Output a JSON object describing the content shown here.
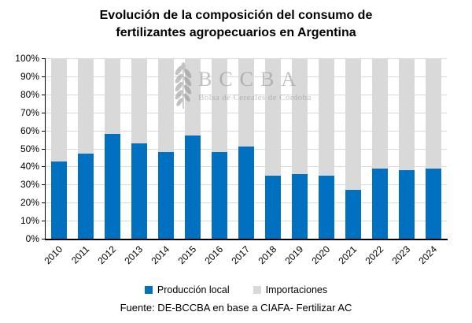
{
  "title": {
    "line1": "Evolución de la composición del consumo de",
    "line2": "fertilizantes agropecuarios en Argentina"
  },
  "watermark": {
    "acronym": "BCCBA",
    "name": "Bolsa de Cereales de Córdoba",
    "color": "#8c8c8c"
  },
  "footer": "Fuente: DE-BCCBA en base a CIAFA- Fertilizar AC",
  "legend": {
    "items": [
      {
        "label": "Producción local",
        "color": "#0070C0"
      },
      {
        "label": "Importaciones",
        "color": "#D9D9D9"
      }
    ]
  },
  "chart_data": {
    "type": "bar",
    "stacked": true,
    "normalized_100pct": true,
    "title": "Evolución de la composición del consumo de fertilizantes agropecuarios en Argentina",
    "xlabel": "",
    "ylabel": "",
    "ylim": [
      0,
      100
    ],
    "grid": true,
    "legend_position": "bottom",
    "categories": [
      "2010",
      "2011",
      "2012",
      "2013",
      "2014",
      "2015",
      "2016",
      "2017",
      "2018",
      "2019",
      "2020",
      "2021",
      "2022",
      "2023",
      "2024"
    ],
    "y_ticks": [
      "0%",
      "10%",
      "20%",
      "30%",
      "40%",
      "50%",
      "60%",
      "70%",
      "80%",
      "90%",
      "100%"
    ],
    "series": [
      {
        "name": "Producción local",
        "color": "#0070C0",
        "values": [
          43,
          47,
          58,
          53,
          48,
          57,
          48,
          51,
          35,
          36,
          35,
          27,
          39,
          38,
          39
        ]
      },
      {
        "name": "Importaciones",
        "color": "#D9D9D9",
        "values": [
          57,
          53,
          42,
          47,
          52,
          43,
          52,
          49,
          65,
          64,
          65,
          73,
          61,
          62,
          61
        ]
      }
    ],
    "axis_color": "#000000",
    "gridline_color": "#D9D9D9"
  }
}
